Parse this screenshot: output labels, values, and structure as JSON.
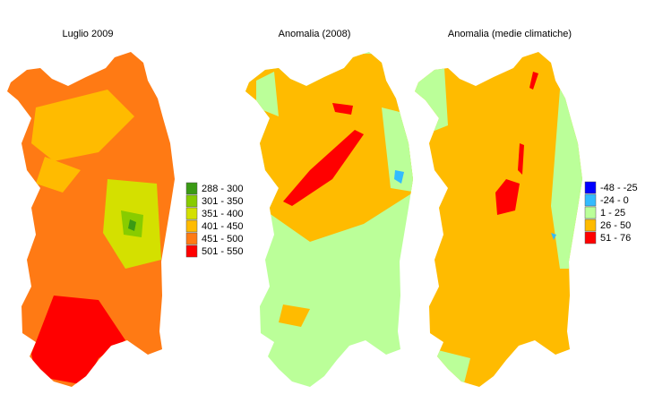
{
  "maps": [
    {
      "title": "Luglio 2009"
    },
    {
      "title": "Anomalia (2008)"
    },
    {
      "title": "Anomalia (medie climatiche)"
    }
  ],
  "legends": [
    {
      "items": [
        {
          "label": "288 - 300",
          "color": "#3a9a14"
        },
        {
          "label": "301 - 350",
          "color": "#88cc00"
        },
        {
          "label": "351 - 400",
          "color": "#d4e000"
        },
        {
          "label": "401 - 450",
          "color": "#ffbb00"
        },
        {
          "label": "451 - 500",
          "color": "#ff7a14"
        },
        {
          "label": "501 - 550",
          "color": "#ff0000"
        }
      ]
    },
    {
      "items": [
        {
          "label": "-48 - -25",
          "color": "#0000ff"
        },
        {
          "label": "-24 - 0",
          "color": "#33bbff"
        },
        {
          "label": "1 - 25",
          "color": "#bbff99"
        },
        {
          "label": "26 - 50",
          "color": "#ffbb00"
        },
        {
          "label": "51 - 76",
          "color": "#ff0000"
        }
      ]
    }
  ]
}
